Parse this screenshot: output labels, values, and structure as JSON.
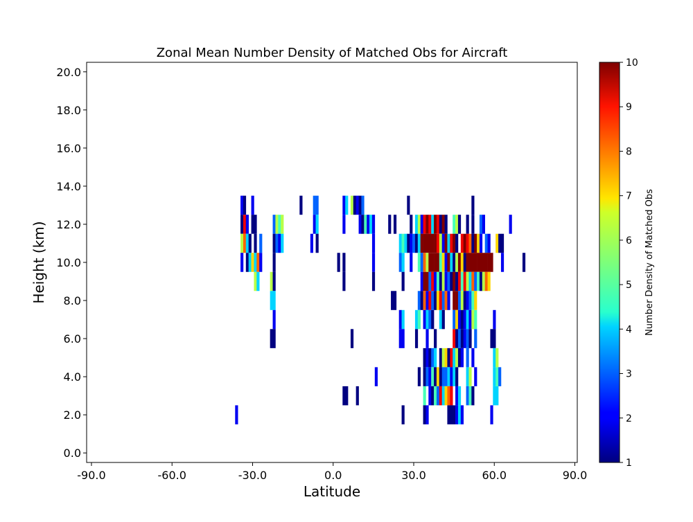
{
  "chart_data": {
    "type": "heatmap",
    "title": "Zonal Mean Number Density of Matched Obs for Aircraft",
    "xlabel": "Latitude",
    "ylabel": "Height (km)",
    "xlim": [
      -91.8,
      90.9
    ],
    "ylim": [
      -0.5,
      20.5
    ],
    "x_ticks": [
      -90,
      -60,
      -30,
      0,
      30,
      60,
      90
    ],
    "x_tick_labels": [
      "-90.0",
      "-60.0",
      "-30.0",
      "0.0",
      "30.0",
      "60.0",
      "90.0"
    ],
    "y_ticks": [
      0,
      2,
      4,
      6,
      8,
      10,
      12,
      14,
      16,
      18,
      20
    ],
    "y_tick_labels": [
      "0.0",
      "2.0",
      "4.0",
      "6.0",
      "8.0",
      "10.0",
      "12.0",
      "14.0",
      "16.0",
      "18.0",
      "20.0"
    ],
    "colorbar": {
      "label": "Number Density of Matched Obs",
      "range": [
        1,
        10
      ],
      "ticks": [
        1,
        2,
        3,
        4,
        5,
        6,
        7,
        8,
        9,
        10
      ],
      "tick_labels": [
        "1",
        "2",
        "3",
        "4",
        "5",
        "6",
        "7",
        "8",
        "9",
        "10"
      ],
      "colormap": "jet"
    },
    "cell_width_deg": 1,
    "cell_height_km": 1,
    "rows": [
      {
        "height": 13,
        "cells": [
          [
            -34,
            2
          ],
          [
            -33,
            1
          ],
          [
            -30,
            2
          ],
          [
            -12,
            1
          ],
          [
            -7,
            3
          ],
          [
            -6,
            3
          ],
          [
            4,
            2
          ],
          [
            5,
            4
          ],
          [
            7,
            6
          ],
          [
            8,
            1
          ],
          [
            9,
            2
          ],
          [
            10,
            1
          ],
          [
            11,
            3
          ],
          [
            28,
            1
          ],
          [
            52,
            1
          ]
        ]
      },
      {
        "height": 12,
        "cells": [
          [
            -34,
            1
          ],
          [
            -33,
            9
          ],
          [
            -32,
            2
          ],
          [
            -30,
            1
          ],
          [
            -29,
            1
          ],
          [
            -22,
            3
          ],
          [
            -21,
            6
          ],
          [
            -20,
            5
          ],
          [
            -19,
            6
          ],
          [
            -7,
            2
          ],
          [
            -6,
            4
          ],
          [
            4,
            2
          ],
          [
            10,
            2
          ],
          [
            11,
            1
          ],
          [
            12,
            5
          ],
          [
            13,
            2
          ],
          [
            14,
            4
          ],
          [
            15,
            2
          ],
          [
            21,
            1
          ],
          [
            23,
            1
          ],
          [
            29,
            1
          ],
          [
            31,
            4
          ],
          [
            32,
            6
          ],
          [
            33,
            2
          ],
          [
            34,
            9
          ],
          [
            35,
            10
          ],
          [
            36,
            9
          ],
          [
            37,
            4
          ],
          [
            38,
            10
          ],
          [
            39,
            9
          ],
          [
            40,
            1
          ],
          [
            41,
            10
          ],
          [
            42,
            1
          ],
          [
            45,
            5
          ],
          [
            46,
            6
          ],
          [
            47,
            1
          ],
          [
            50,
            1
          ],
          [
            52,
            1
          ],
          [
            55,
            3
          ],
          [
            56,
            2
          ],
          [
            66,
            2
          ]
        ]
      },
      {
        "height": 11,
        "cells": [
          [
            -34,
            6
          ],
          [
            -33,
            8
          ],
          [
            -32,
            4
          ],
          [
            -31,
            1
          ],
          [
            -29,
            1
          ],
          [
            -27,
            3
          ],
          [
            -22,
            1
          ],
          [
            -21,
            3
          ],
          [
            -20,
            2
          ],
          [
            -19,
            4
          ],
          [
            -8,
            2
          ],
          [
            -6,
            1
          ],
          [
            15,
            2
          ],
          [
            25,
            4
          ],
          [
            26,
            5
          ],
          [
            27,
            4
          ],
          [
            28,
            1
          ],
          [
            29,
            2
          ],
          [
            30,
            3
          ],
          [
            31,
            1
          ],
          [
            32,
            4
          ],
          [
            33,
            10
          ],
          [
            34,
            10
          ],
          [
            35,
            10
          ],
          [
            36,
            10
          ],
          [
            37,
            10
          ],
          [
            38,
            10
          ],
          [
            39,
            9
          ],
          [
            40,
            6
          ],
          [
            41,
            2
          ],
          [
            42,
            10
          ],
          [
            43,
            4
          ],
          [
            44,
            9
          ],
          [
            45,
            10
          ],
          [
            46,
            1
          ],
          [
            48,
            9
          ],
          [
            49,
            10
          ],
          [
            50,
            9
          ],
          [
            51,
            8
          ],
          [
            52,
            1
          ],
          [
            53,
            10
          ],
          [
            54,
            7
          ],
          [
            55,
            2
          ],
          [
            57,
            3
          ],
          [
            58,
            2
          ],
          [
            61,
            7
          ],
          [
            62,
            1
          ],
          [
            63,
            1
          ]
        ]
      },
      {
        "height": 10,
        "cells": [
          [
            -34,
            2
          ],
          [
            -32,
            1
          ],
          [
            -31,
            4
          ],
          [
            -30,
            7
          ],
          [
            -29,
            4
          ],
          [
            -28,
            8
          ],
          [
            -27,
            2
          ],
          [
            -22,
            1
          ],
          [
            2,
            1
          ],
          [
            4,
            1
          ],
          [
            15,
            2
          ],
          [
            25,
            3
          ],
          [
            26,
            4
          ],
          [
            29,
            2
          ],
          [
            32,
            5
          ],
          [
            33,
            3
          ],
          [
            34,
            8
          ],
          [
            35,
            6
          ],
          [
            36,
            10
          ],
          [
            37,
            10
          ],
          [
            38,
            10
          ],
          [
            39,
            10
          ],
          [
            40,
            5
          ],
          [
            41,
            7
          ],
          [
            42,
            2
          ],
          [
            43,
            10
          ],
          [
            44,
            4
          ],
          [
            45,
            1
          ],
          [
            46,
            6
          ],
          [
            47,
            10
          ],
          [
            48,
            7
          ],
          [
            49,
            1
          ],
          [
            50,
            10
          ],
          [
            51,
            10
          ],
          [
            52,
            10
          ],
          [
            53,
            10
          ],
          [
            54,
            10
          ],
          [
            55,
            10
          ],
          [
            56,
            10
          ],
          [
            57,
            10
          ],
          [
            58,
            10
          ],
          [
            59,
            10
          ],
          [
            63,
            2
          ],
          [
            71,
            1
          ]
        ]
      },
      {
        "height": 9,
        "cells": [
          [
            -29,
            6
          ],
          [
            -28,
            4
          ],
          [
            -23,
            6
          ],
          [
            -22,
            1
          ],
          [
            4,
            1
          ],
          [
            15,
            1
          ],
          [
            26,
            1
          ],
          [
            33,
            2
          ],
          [
            34,
            10
          ],
          [
            35,
            10
          ],
          [
            36,
            3
          ],
          [
            37,
            9
          ],
          [
            38,
            2
          ],
          [
            39,
            5
          ],
          [
            40,
            1
          ],
          [
            41,
            6
          ],
          [
            42,
            2
          ],
          [
            43,
            3
          ],
          [
            44,
            1
          ],
          [
            45,
            10
          ],
          [
            46,
            1
          ],
          [
            47,
            9
          ],
          [
            48,
            5
          ],
          [
            49,
            9
          ],
          [
            50,
            6
          ],
          [
            51,
            4
          ],
          [
            52,
            8
          ],
          [
            53,
            3
          ],
          [
            54,
            5
          ],
          [
            55,
            1
          ],
          [
            56,
            6
          ],
          [
            57,
            8
          ],
          [
            58,
            7
          ]
        ]
      },
      {
        "height": 8,
        "cells": [
          [
            -23,
            4
          ],
          [
            -22,
            4
          ],
          [
            22,
            1
          ],
          [
            23,
            1
          ],
          [
            32,
            3
          ],
          [
            33,
            1
          ],
          [
            34,
            8
          ],
          [
            35,
            2
          ],
          [
            36,
            9
          ],
          [
            37,
            3
          ],
          [
            38,
            1
          ],
          [
            39,
            7
          ],
          [
            40,
            9
          ],
          [
            41,
            3
          ],
          [
            42,
            8
          ],
          [
            43,
            2
          ],
          [
            45,
            10
          ],
          [
            46,
            10
          ],
          [
            47,
            3
          ],
          [
            48,
            6
          ],
          [
            49,
            1
          ],
          [
            50,
            2
          ],
          [
            51,
            3
          ],
          [
            52,
            5
          ],
          [
            53,
            7
          ]
        ]
      },
      {
        "height": 7,
        "cells": [
          [
            -22,
            2
          ],
          [
            25,
            2
          ],
          [
            26,
            4
          ],
          [
            31,
            4
          ],
          [
            32,
            5
          ],
          [
            34,
            2
          ],
          [
            35,
            4
          ],
          [
            36,
            3
          ],
          [
            37,
            1
          ],
          [
            40,
            4
          ],
          [
            41,
            1
          ],
          [
            45,
            3
          ],
          [
            46,
            7
          ],
          [
            47,
            2
          ],
          [
            48,
            1
          ],
          [
            49,
            2
          ],
          [
            50,
            4
          ],
          [
            51,
            2
          ],
          [
            52,
            6
          ],
          [
            53,
            5
          ],
          [
            60,
            2
          ]
        ]
      },
      {
        "height": 6,
        "cells": [
          [
            -23,
            1
          ],
          [
            -22,
            1
          ],
          [
            7,
            1
          ],
          [
            25,
            2
          ],
          [
            26,
            2
          ],
          [
            31,
            1
          ],
          [
            35,
            2
          ],
          [
            38,
            1
          ],
          [
            45,
            9
          ],
          [
            46,
            1
          ],
          [
            47,
            3
          ],
          [
            48,
            1
          ],
          [
            49,
            2
          ],
          [
            50,
            3
          ],
          [
            51,
            1
          ],
          [
            53,
            3
          ],
          [
            59,
            1
          ],
          [
            60,
            1
          ]
        ]
      },
      {
        "height": 5,
        "cells": [
          [
            34,
            1
          ],
          [
            35,
            2
          ],
          [
            36,
            1
          ],
          [
            37,
            3
          ],
          [
            38,
            4
          ],
          [
            40,
            1
          ],
          [
            41,
            6
          ],
          [
            42,
            7
          ],
          [
            43,
            1
          ],
          [
            44,
            9
          ],
          [
            45,
            4
          ],
          [
            46,
            6
          ],
          [
            47,
            1
          ],
          [
            48,
            2
          ],
          [
            50,
            3
          ],
          [
            52,
            2
          ],
          [
            60,
            4
          ],
          [
            61,
            6
          ]
        ]
      },
      {
        "height": 4,
        "cells": [
          [
            16,
            2
          ],
          [
            32,
            1
          ],
          [
            34,
            1
          ],
          [
            35,
            3
          ],
          [
            36,
            2
          ],
          [
            37,
            5
          ],
          [
            38,
            1
          ],
          [
            39,
            7
          ],
          [
            40,
            1
          ],
          [
            41,
            3
          ],
          [
            42,
            3
          ],
          [
            43,
            4
          ],
          [
            44,
            2
          ],
          [
            45,
            4
          ],
          [
            46,
            1
          ],
          [
            50,
            4
          ],
          [
            51,
            6
          ],
          [
            53,
            2
          ],
          [
            60,
            4
          ],
          [
            61,
            5
          ],
          [
            62,
            3
          ]
        ]
      },
      {
        "height": 3,
        "cells": [
          [
            4,
            1
          ],
          [
            5,
            1
          ],
          [
            9,
            1
          ],
          [
            34,
            5
          ],
          [
            36,
            2
          ],
          [
            37,
            1
          ],
          [
            38,
            5
          ],
          [
            39,
            3
          ],
          [
            40,
            9
          ],
          [
            41,
            4
          ],
          [
            42,
            7
          ],
          [
            43,
            8
          ],
          [
            44,
            9
          ],
          [
            46,
            2
          ],
          [
            47,
            4
          ],
          [
            50,
            3
          ],
          [
            51,
            5
          ],
          [
            52,
            1
          ],
          [
            60,
            4
          ],
          [
            61,
            4
          ]
        ]
      },
      {
        "height": 2,
        "cells": [
          [
            -36,
            2
          ],
          [
            26,
            1
          ],
          [
            34,
            1
          ],
          [
            35,
            2
          ],
          [
            43,
            1
          ],
          [
            44,
            1
          ],
          [
            45,
            1
          ],
          [
            46,
            2
          ],
          [
            47,
            4
          ],
          [
            48,
            2
          ],
          [
            59,
            2
          ]
        ]
      }
    ]
  }
}
